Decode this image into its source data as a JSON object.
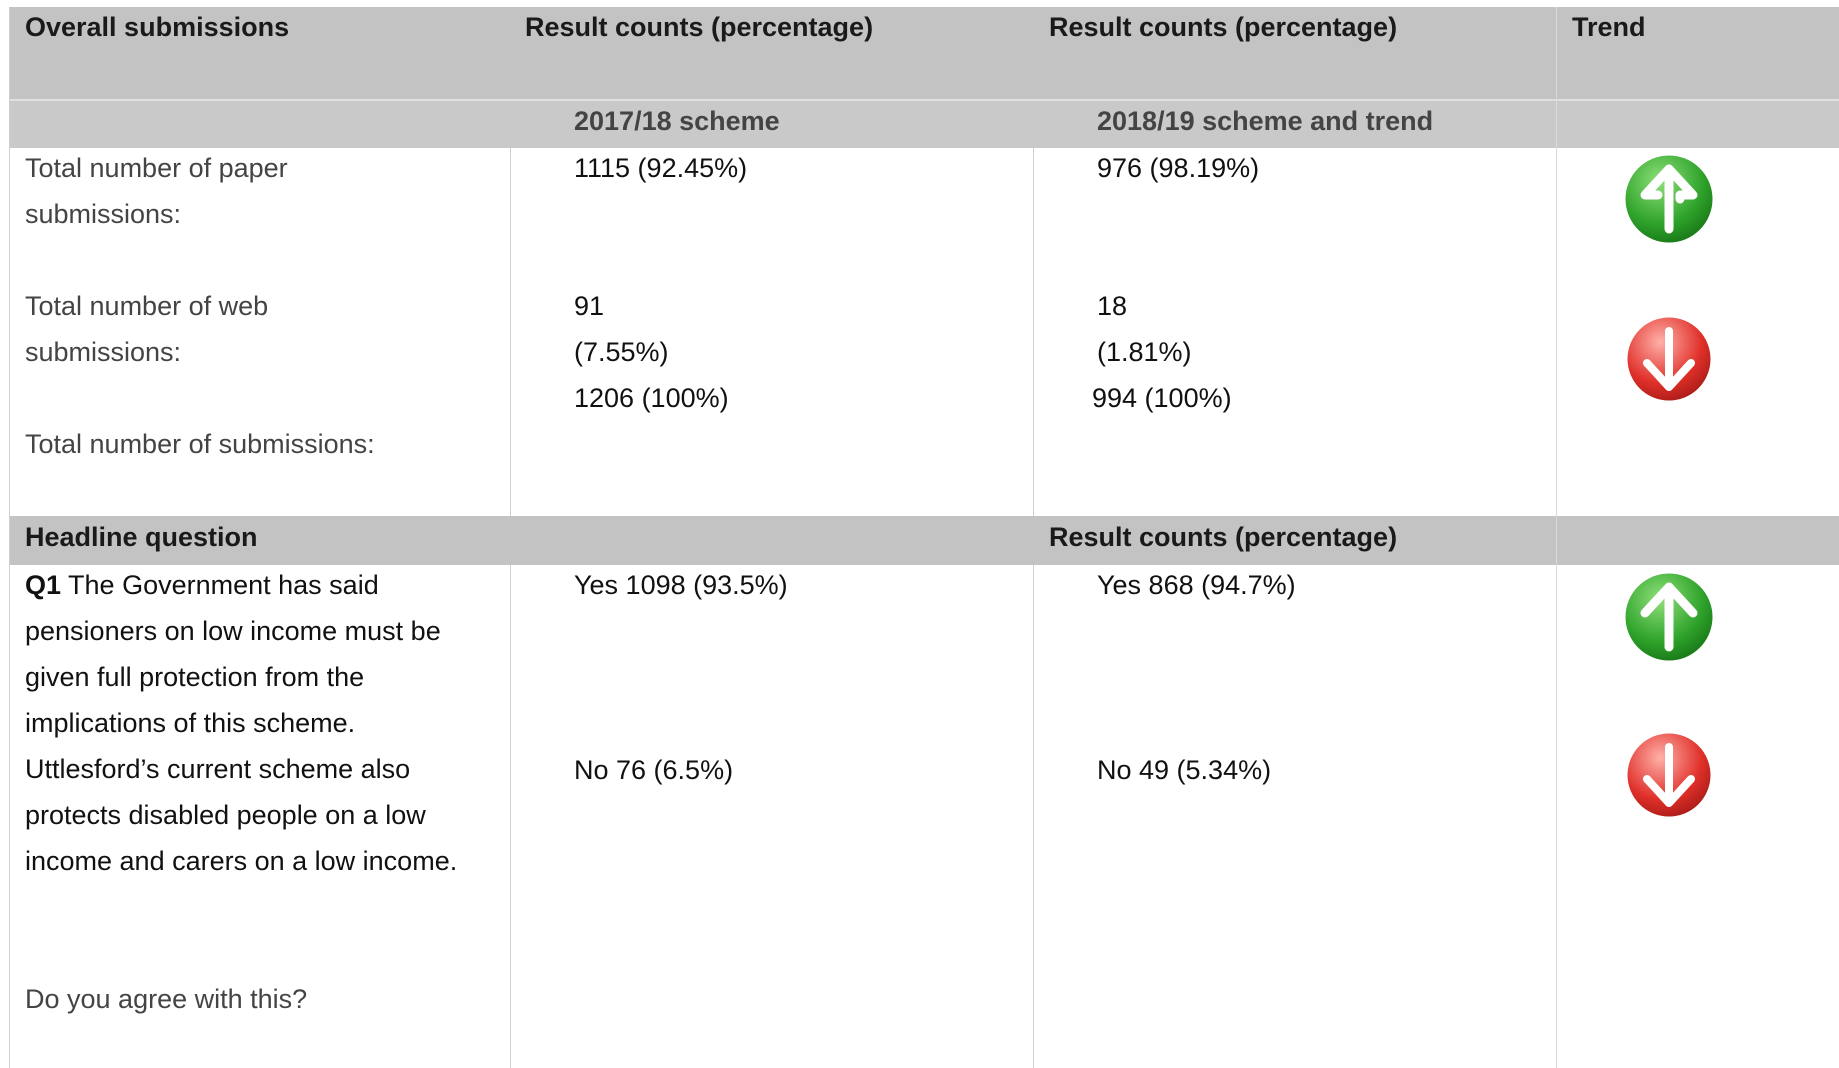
{
  "table1": {
    "headers": [
      "Overall submissions",
      "Result counts (percentage)",
      "Result counts (percentage)",
      "Trend"
    ],
    "subheaders": [
      "2017/18 scheme",
      "2018/19 scheme and trend"
    ],
    "paper": {
      "label": "Total number of paper submissions:",
      "y2017": "1115 (92.45%)",
      "y2018": "976 (98.19%)"
    },
    "web": {
      "label": "Total number of web submissions:",
      "y2017": [
        "91",
        "(7.55%)"
      ],
      "y2018": [
        "18",
        "(1.81%)"
      ]
    },
    "total": {
      "label": "Total number of submissions:",
      "y2017": "1206 (100%)",
      "y2018": "994 (100%)"
    }
  },
  "table2": {
    "headers": [
      "Headline question",
      "Result counts (percentage)"
    ],
    "question": {
      "number": "Q1",
      "text": "The Government has said pensioners on low income must be given full protection from the implications of this scheme. Uttlesford’s current scheme also protects disabled people on a low income and carers on a low income.",
      "prompt": "Do you agree with this?"
    },
    "y2017": {
      "yes": "Yes 1098 (93.5%)",
      "no": "No 76 (6.5%)"
    },
    "y2018": {
      "yes": "Yes 868 (94.7%)",
      "no": "No 49 (5.34%)"
    }
  }
}
